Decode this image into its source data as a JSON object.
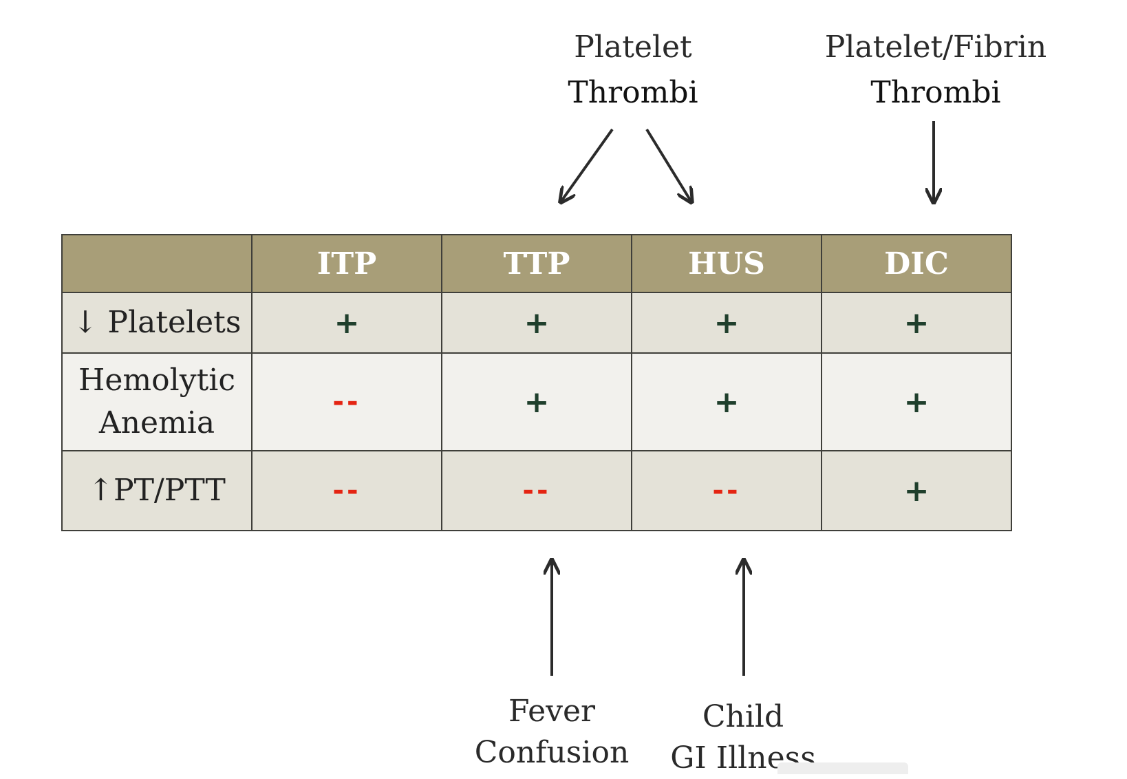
{
  "annotations": {
    "top_platelet": [
      "Platelet",
      "Thrombi"
    ],
    "top_fibrin": [
      "Platelet/Fibrin",
      "Thrombi"
    ],
    "bottom_ttp": [
      "Fever",
      "Confusion"
    ],
    "bottom_hus": [
      "Child",
      "GI Illness"
    ]
  },
  "table": {
    "columns": [
      "",
      "ITP",
      "TTP",
      "HUS",
      "DIC"
    ],
    "rows": [
      {
        "label": [
          "↓ Platelets"
        ],
        "cells": [
          "+",
          "+",
          "+",
          "+"
        ]
      },
      {
        "label": [
          "Hemolytic",
          "Anemia"
        ],
        "cells": [
          "--",
          "+",
          "+",
          "+"
        ]
      },
      {
        "label": [
          "↑PT/PTT"
        ],
        "cells": [
          "--",
          "--",
          "--",
          "+"
        ]
      }
    ]
  },
  "colors": {
    "header_bg": "#a89e78",
    "row_bg_dark": "#e4e2d8",
    "row_bg_light": "#f2f1ed",
    "plus": "#1f3f2c",
    "minus": "#e42412",
    "border": "#3f3f3a"
  }
}
